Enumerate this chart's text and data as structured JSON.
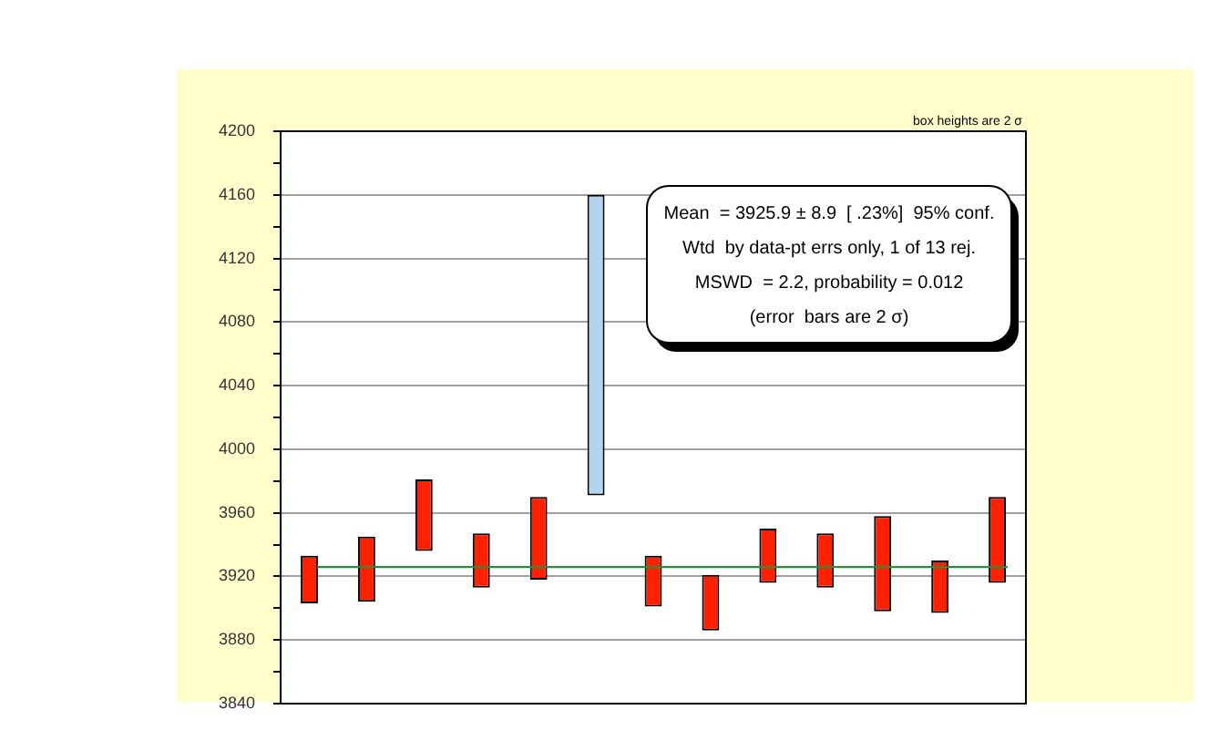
{
  "chart_data": {
    "type": "bar",
    "categories": [
      null,
      null,
      null,
      null,
      null,
      null,
      null,
      null,
      null,
      null,
      null,
      null,
      null
    ],
    "base": [
      3903,
      3904,
      3936,
      3913,
      3918,
      3971,
      3901,
      3886,
      3916,
      3913,
      3898,
      3897,
      3916
    ],
    "values": [
      30,
      41,
      45,
      34,
      52,
      189,
      32,
      35,
      34,
      34,
      60,
      33,
      54
    ],
    "colors": [
      "#ff2200",
      "#ff2200",
      "#ff2200",
      "#ff2200",
      "#ff2200",
      "#b3d3f0",
      "#ff2200",
      "#ff2200",
      "#ff2200",
      "#ff2200",
      "#ff2200",
      "#ff2200",
      "#ff2200"
    ],
    "ylim": [
      3840,
      4200
    ],
    "yticks": [
      3840,
      {
        "value": 3860,
        "label": null
      },
      3880,
      {
        "value": 3900,
        "label": null
      },
      3920,
      {
        "value": 3940,
        "label": null
      },
      3960,
      {
        "value": 3980,
        "label": null
      },
      4000,
      {
        "value": 4020,
        "label": null
      },
      4040,
      {
        "value": 4060,
        "label": null
      },
      4080,
      {
        "value": 4100,
        "label": null
      },
      4120,
      {
        "value": 4140,
        "label": null
      },
      4160,
      {
        "value": 4180,
        "label": null
      },
      4200
    ],
    "grid": "y",
    "legend": false,
    "tick_labels": "y",
    "ref_lines": [
      {
        "axis": "y",
        "value": 3925.9,
        "color": "#2e8b3e"
      }
    ],
    "annotations": [
      "Mean  = 3925.9 ± 8.9  [ .23%]  95% conf.",
      "Wtd  by data-pt errs only, 1 of 13 rej.",
      "MSWD  = 2.2, probability = 0.012",
      "(error  bars are 2 σ)",
      "box heights are 2 σ"
    ]
  }
}
